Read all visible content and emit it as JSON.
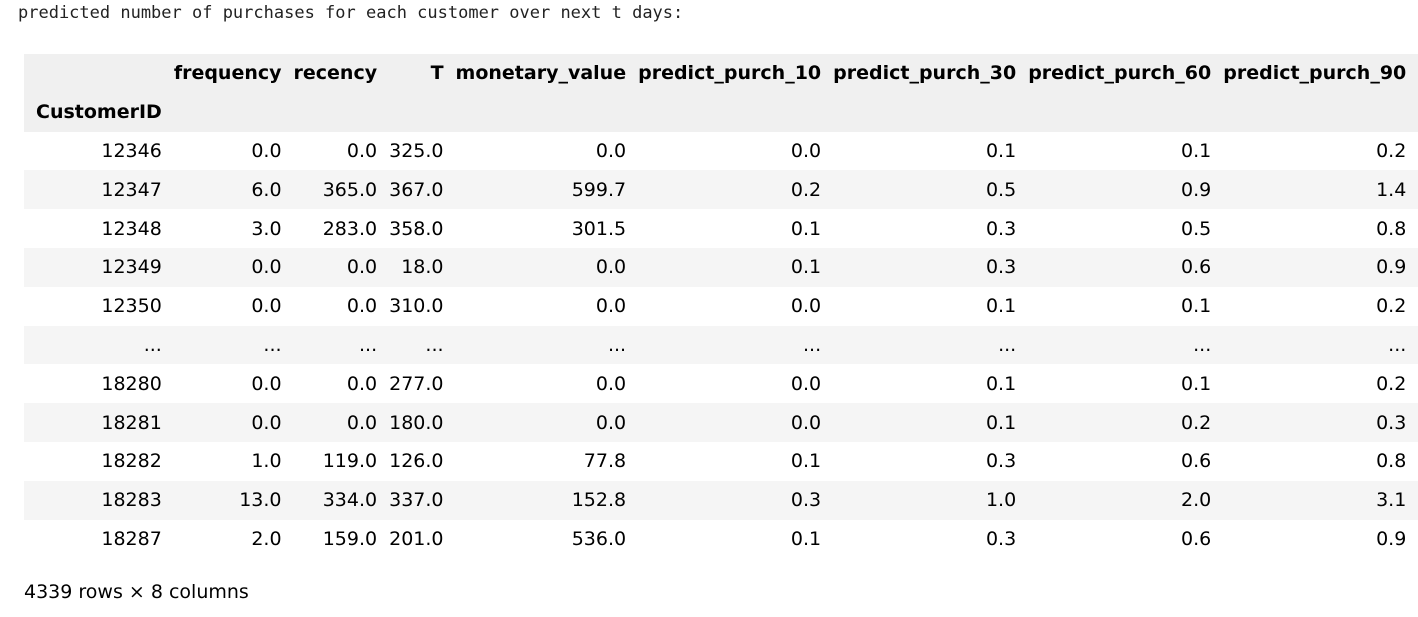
{
  "output_text": "predicted number of purchases for each customer over next t days:",
  "table": {
    "columns": [
      "frequency",
      "recency",
      "T",
      "monetary_value",
      "predict_purch_10",
      "predict_purch_30",
      "predict_purch_60",
      "predict_purch_90"
    ],
    "index_name": "CustomerID",
    "rows": [
      {
        "index": "12346",
        "values": [
          "0.0",
          "0.0",
          "325.0",
          "0.0",
          "0.0",
          "0.1",
          "0.1",
          "0.2"
        ]
      },
      {
        "index": "12347",
        "values": [
          "6.0",
          "365.0",
          "367.0",
          "599.7",
          "0.2",
          "0.5",
          "0.9",
          "1.4"
        ]
      },
      {
        "index": "12348",
        "values": [
          "3.0",
          "283.0",
          "358.0",
          "301.5",
          "0.1",
          "0.3",
          "0.5",
          "0.8"
        ]
      },
      {
        "index": "12349",
        "values": [
          "0.0",
          "0.0",
          "18.0",
          "0.0",
          "0.1",
          "0.3",
          "0.6",
          "0.9"
        ]
      },
      {
        "index": "12350",
        "values": [
          "0.0",
          "0.0",
          "310.0",
          "0.0",
          "0.0",
          "0.1",
          "0.1",
          "0.2"
        ]
      },
      {
        "index": "...",
        "values": [
          "...",
          "...",
          "...",
          "...",
          "...",
          "...",
          "...",
          "..."
        ]
      },
      {
        "index": "18280",
        "values": [
          "0.0",
          "0.0",
          "277.0",
          "0.0",
          "0.0",
          "0.1",
          "0.1",
          "0.2"
        ]
      },
      {
        "index": "18281",
        "values": [
          "0.0",
          "0.0",
          "180.0",
          "0.0",
          "0.0",
          "0.1",
          "0.2",
          "0.3"
        ]
      },
      {
        "index": "18282",
        "values": [
          "1.0",
          "119.0",
          "126.0",
          "77.8",
          "0.1",
          "0.3",
          "0.6",
          "0.8"
        ]
      },
      {
        "index": "18283",
        "values": [
          "13.0",
          "334.0",
          "337.0",
          "152.8",
          "0.3",
          "1.0",
          "2.0",
          "3.1"
        ]
      },
      {
        "index": "18287",
        "values": [
          "2.0",
          "159.0",
          "201.0",
          "536.0",
          "0.1",
          "0.3",
          "0.6",
          "0.9"
        ]
      }
    ],
    "footer": "4339 rows × 8 columns"
  }
}
